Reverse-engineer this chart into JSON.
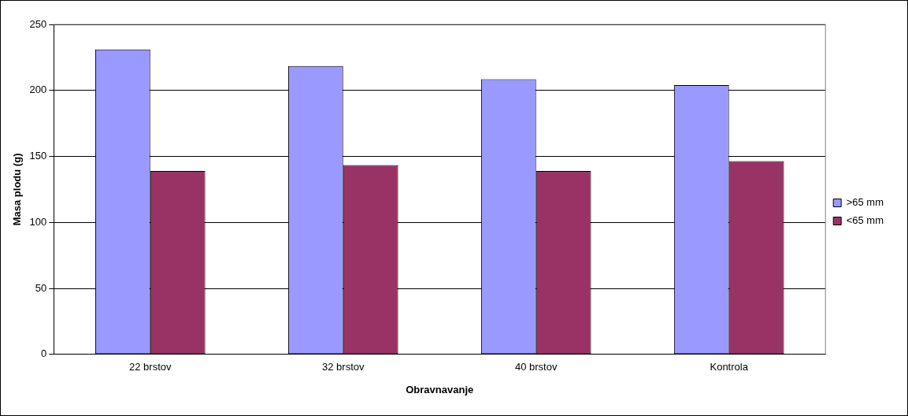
{
  "chart_data": {
    "type": "bar",
    "xlabel": "Obravnavanje",
    "ylabel": "Masa plodu (g)",
    "categories": [
      "22 brstov",
      "32 brstov",
      "40 brstov",
      "Kontrola"
    ],
    "series": [
      {
        "name": ">65 mm",
        "color": "#9999ff",
        "values": [
          231,
          218.5,
          208.5,
          204
        ]
      },
      {
        "name": "<65 mm",
        "color": "#993366",
        "values": [
          139,
          143.5,
          139,
          146.5
        ]
      }
    ],
    "ylim": [
      0,
      250
    ],
    "yticks": [
      0,
      50,
      100,
      150,
      200,
      250
    ],
    "grid": "y",
    "legend": "right"
  }
}
